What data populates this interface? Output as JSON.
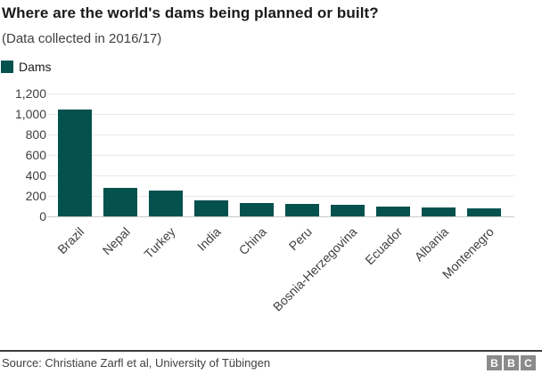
{
  "chart_data": {
    "type": "bar",
    "title": "Where are the world's dams being planned or built?",
    "subtitle": "(Data collected in 2016/17)",
    "legend": [
      "Dams"
    ],
    "legend_position": "top-left",
    "categories": [
      "Brazil",
      "Nepal",
      "Turkey",
      "India",
      "China",
      "Peru",
      "Bosnia-Herzegovina",
      "Ecuador",
      "Albania",
      "Montenegro"
    ],
    "values": [
      1040,
      275,
      250,
      155,
      130,
      120,
      110,
      100,
      85,
      75
    ],
    "xlabel": "",
    "ylabel": "",
    "ylim": [
      0,
      1200
    ],
    "yticks": [
      0,
      200,
      400,
      600,
      800,
      1000,
      1200
    ],
    "ytick_labels": [
      "0",
      "200",
      "400",
      "600",
      "800",
      "1,000",
      "1,200"
    ],
    "grid": true,
    "bar_color": "#05514e",
    "grid_color": "#e9e9e9",
    "axis_color": "#c9c9c9"
  },
  "footer": {
    "source": "Source: Christiane Zarfl et al, University of Tübingen",
    "bbc_letters": [
      "B",
      "B",
      "C"
    ]
  }
}
